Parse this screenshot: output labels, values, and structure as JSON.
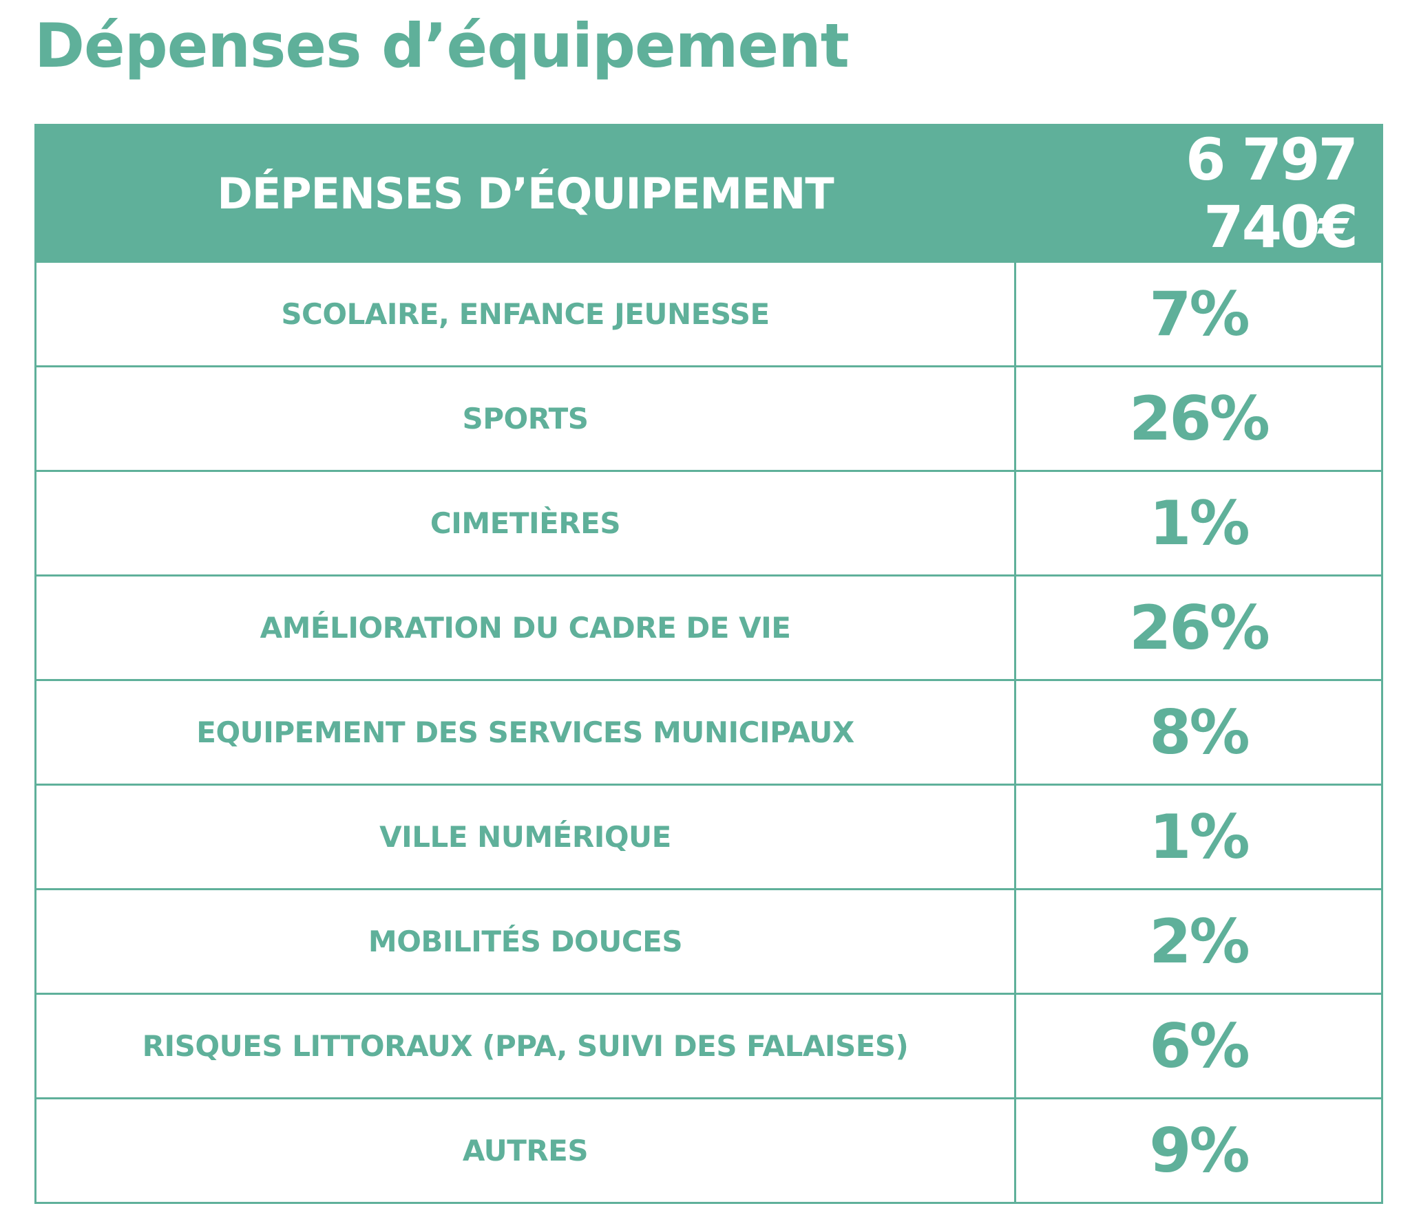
{
  "title": "Dépenses d’équipement",
  "table": {
    "header": {
      "label": "DÉPENSES D’ÉQUIPEMENT",
      "total": "6 797 740€"
    },
    "rows": [
      {
        "category": "SCOLAIRE, ENFANCE JEUNESSE",
        "share": "7%"
      },
      {
        "category": "SPORTS",
        "share": "26%"
      },
      {
        "category": "CIMETIÈRES",
        "share": "1%"
      },
      {
        "category": "AMÉLIORATION DU CADRE DE VIE",
        "share": "26%"
      },
      {
        "category": "EQUIPEMENT DES SERVICES MUNICIPAUX",
        "share": "8%"
      },
      {
        "category": "VILLE NUMÉRIQUE",
        "share": "1%"
      },
      {
        "category": "MOBILITÉS DOUCES",
        "share": "2%"
      },
      {
        "category": "RISQUES LITTORAUX (PPA, SUIVI DES FALAISES)",
        "share": "6%"
      },
      {
        "category": "AUTRES",
        "share": "9%"
      }
    ]
  },
  "colors": {
    "accent": "#5fb09a",
    "background": "#ffffff"
  }
}
